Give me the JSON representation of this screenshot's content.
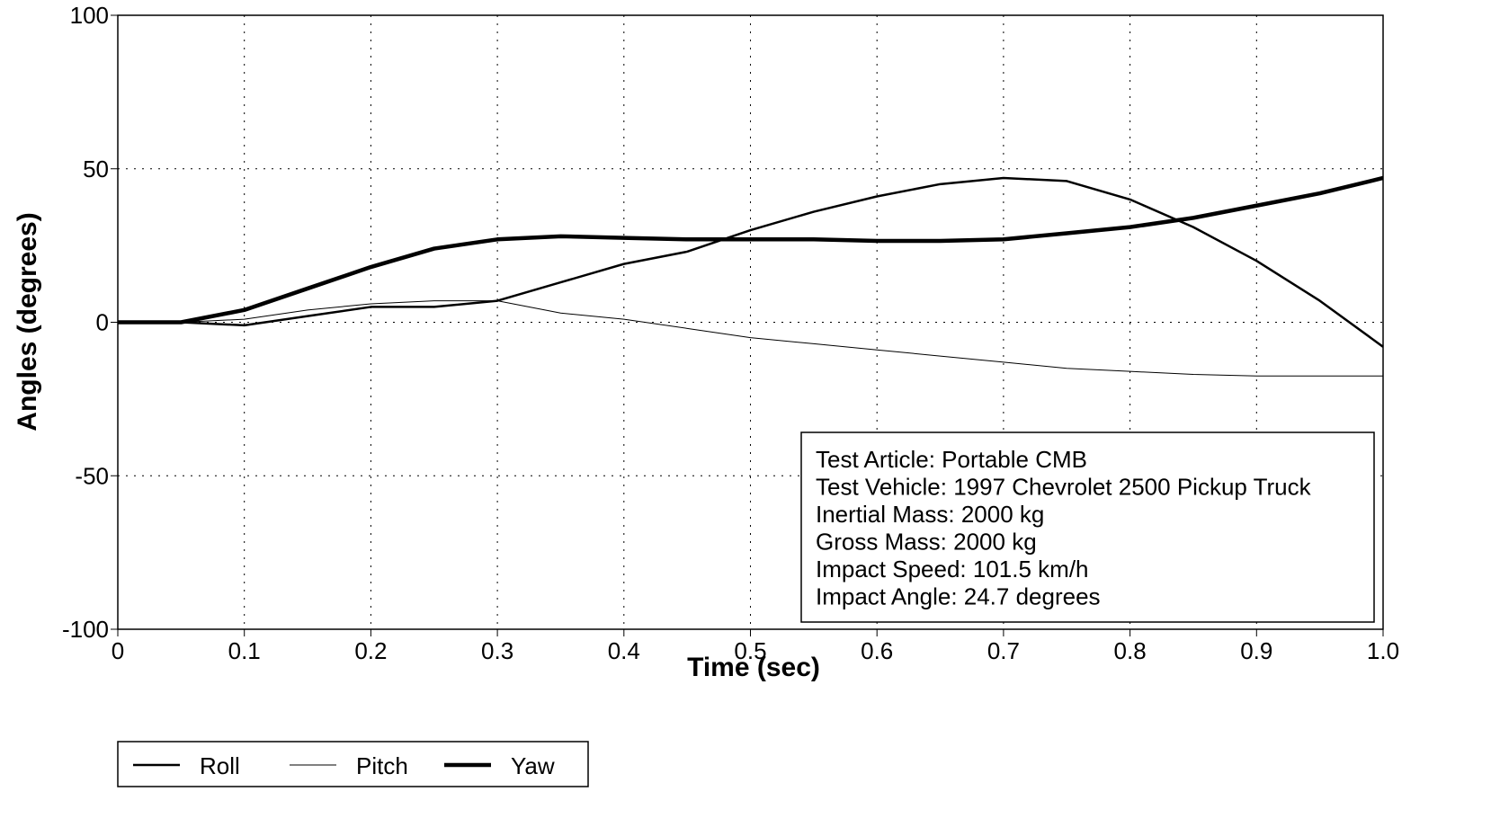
{
  "chart_data": {
    "type": "line",
    "x_label": "Time (sec)",
    "y_label": "Angles (degrees)",
    "x": [
      0,
      0.05,
      0.1,
      0.15,
      0.2,
      0.25,
      0.3,
      0.35,
      0.4,
      0.45,
      0.5,
      0.55,
      0.6,
      0.65,
      0.7,
      0.75,
      0.8,
      0.85,
      0.9,
      0.95,
      1.0
    ],
    "series": [
      {
        "name": "Roll",
        "color": "#000000",
        "width": 2.5,
        "values": [
          0,
          0,
          -1,
          2,
          5,
          5,
          7,
          13,
          19,
          23,
          30,
          36,
          41,
          45,
          47,
          46,
          40,
          31,
          20,
          7,
          -8
        ]
      },
      {
        "name": "Pitch",
        "color": "#000000",
        "width": 1,
        "values": [
          0,
          0,
          1,
          4,
          6,
          7,
          7,
          3,
          1,
          -2,
          -5,
          -7,
          -9,
          -11,
          -13,
          -15,
          -16,
          -17,
          -17.5,
          -17.5,
          -17.5
        ]
      },
      {
        "name": "Yaw",
        "color": "#000000",
        "width": 4.5,
        "values": [
          0,
          0,
          4,
          11,
          18,
          24,
          27,
          28,
          27.5,
          27,
          27,
          27,
          26.5,
          26.5,
          27,
          29,
          31,
          34,
          38,
          42,
          47
        ]
      }
    ],
    "xlim": [
      0,
      1
    ],
    "ylim": [
      -100,
      100
    ],
    "xticks": [
      0,
      0.1,
      0.2,
      0.3,
      0.4,
      0.5,
      0.6,
      0.7,
      0.8,
      0.9,
      {
        "value": 1,
        "label": "1.0"
      }
    ],
    "yticks": [
      -100,
      -50,
      0,
      50,
      100
    ],
    "grid": true,
    "legend": "bottom-left",
    "annotation": [
      "Test Article: Portable CMB",
      "Test Vehicle: 1997 Chevrolet 2500 Pickup Truck",
      "Inertial Mass: 2000 kg",
      "Gross Mass: 2000 kg",
      "Impact Speed: 101.5 km/h",
      "Impact Angle: 24.7 degrees"
    ]
  }
}
